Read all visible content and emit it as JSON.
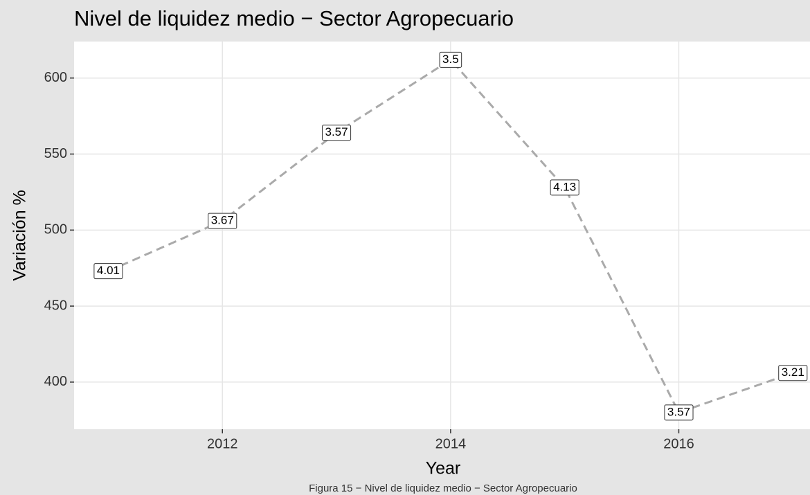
{
  "chart_data": {
    "type": "line",
    "title": "Nivel de liquidez medio − Sector Agropecuario",
    "caption": "Figura 15 − Nivel de liquidez medio − Sector Agropecuario",
    "x_label": "Year",
    "y_label": "Variación %",
    "x": [
      2011,
      2012,
      2013,
      2014,
      2015,
      2016,
      2017
    ],
    "series": [
      {
        "color": "#aaaaaa",
        "values": [
          473,
          506,
          564,
          612,
          528,
          380,
          406
        ]
      }
    ],
    "point_labels": [
      "4.01",
      "3.67",
      "3.57",
      "3.5",
      "4.13",
      "3.57",
      "3.21"
    ],
    "xlim": [
      2010.7,
      2017.15
    ],
    "xticks": [
      2012,
      2014,
      2016
    ],
    "ylim": [
      369,
      624
    ],
    "yticks": [
      400,
      450,
      500,
      550,
      600
    ],
    "grid": true
  }
}
